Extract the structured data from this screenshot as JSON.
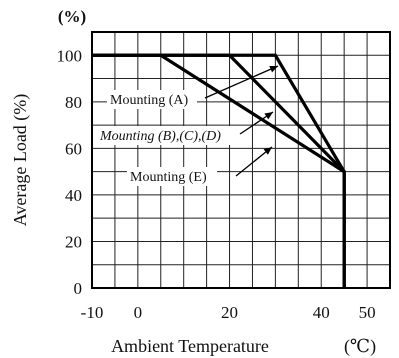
{
  "chart_data": {
    "type": "line",
    "title": "",
    "xlabel": "Ambient Temperature",
    "xunit": "(℃)",
    "ylabel": "Average Load (%)",
    "yunit": "(%)",
    "xlim": [
      -10,
      55
    ],
    "ylim": [
      0,
      110
    ],
    "xticks": [
      "-10",
      "0",
      "20",
      "40",
      "50"
    ],
    "yticks": [
      "0",
      "20",
      "40",
      "60",
      "80",
      "100"
    ],
    "grid": true,
    "series": [
      {
        "name": "Mounting (A)",
        "x": [
          -10,
          30,
          45,
          45
        ],
        "y": [
          100,
          100,
          50,
          0
        ]
      },
      {
        "name": "Mounting (B),(C),(D)",
        "x": [
          -10,
          20,
          45,
          45
        ],
        "y": [
          100,
          100,
          50,
          0
        ]
      },
      {
        "name": "Mounting (E)",
        "x": [
          -10,
          5,
          45,
          45
        ],
        "y": [
          100,
          100,
          50,
          0
        ]
      }
    ],
    "annotations": [
      {
        "text": "Mounting (A)",
        "italic": false,
        "points_to_series": 0
      },
      {
        "text": "Mounting (B),(C),(D)",
        "italic": true,
        "points_to_series": 1
      },
      {
        "text": "Mounting (E)",
        "italic": false,
        "points_to_series": 2
      }
    ]
  }
}
